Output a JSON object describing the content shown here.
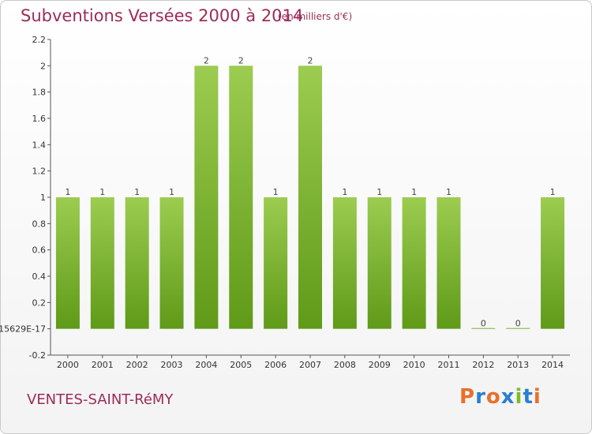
{
  "header": {
    "title": "Subventions Versées 2000 à 2014",
    "unit": "(en milliers d'€)"
  },
  "footer": {
    "commune": "VENTES-SAINT-RéMY",
    "logo": "Proxiti"
  },
  "colors": {
    "title": "#9b2d55",
    "bar_light": "#9ccc50",
    "bar_dark": "#5f9a18",
    "logo_letters": [
      "#e8702a",
      "#2a7fd0",
      "#e8702a",
      "#2a7fd0",
      "#7dbb2a",
      "#2a7fd0",
      "#e8702a"
    ]
  },
  "chart_data": {
    "type": "bar",
    "categories": [
      "2000",
      "2001",
      "2002",
      "2003",
      "2004",
      "2005",
      "2006",
      "2007",
      "2008",
      "2009",
      "2010",
      "2011",
      "2012",
      "2013",
      "2014"
    ],
    "values": [
      1,
      1,
      1,
      1,
      2,
      2,
      1,
      2,
      1,
      1,
      1,
      1,
      0,
      0,
      1
    ],
    "data_labels": [
      "1",
      "1",
      "1",
      "1",
      "2",
      "2",
      "1",
      "2",
      "1",
      "1",
      "1",
      "1",
      "0",
      "0",
      "1"
    ],
    "y_ticks": [
      {
        "value": 2.2,
        "label": "2.2"
      },
      {
        "value": 2,
        "label": "2"
      },
      {
        "value": 1.8,
        "label": "1.8"
      },
      {
        "value": 1.6,
        "label": "1.6"
      },
      {
        "value": 1.4,
        "label": "1.4"
      },
      {
        "value": 1.2,
        "label": "1.2"
      },
      {
        "value": 1,
        "label": "1"
      },
      {
        "value": 0.8,
        "label": "0.8"
      },
      {
        "value": 0.6,
        "label": "0.6"
      },
      {
        "value": 0.4,
        "label": "0.4"
      },
      {
        "value": 0.2,
        "label": "0.2"
      },
      {
        "value": 0,
        "label": "15629E-17"
      },
      {
        "value": -0.2,
        "label": "-0.2"
      }
    ],
    "ylim": [
      -0.2,
      2.2
    ],
    "grid": false
  }
}
